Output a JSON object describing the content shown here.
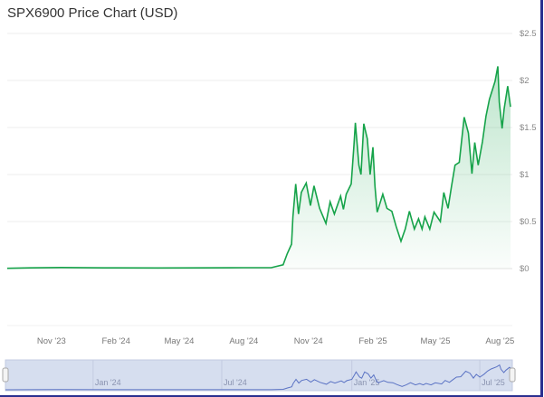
{
  "chart_data": {
    "type": "area",
    "title": "SPX6900 Price Chart (USD)",
    "xlabel": "",
    "ylabel": "",
    "ylim": [
      0,
      2.5
    ],
    "xlim": [
      "2023-08-30",
      "2025-08-16"
    ],
    "y_ticks": [
      "$0",
      "$0.5",
      "$1",
      "$1.5",
      "$2",
      "$2.5"
    ],
    "y_tick_values": [
      0,
      0.5,
      1,
      1.5,
      2,
      2.5
    ],
    "x_ticks": [
      "Nov '23",
      "Feb '24",
      "May '24",
      "Aug '24",
      "Nov '24",
      "Feb '25",
      "May '25",
      "Aug '25"
    ],
    "x_tick_dates": [
      "2023-11-01",
      "2024-02-01",
      "2024-05-01",
      "2024-08-01",
      "2024-11-01",
      "2025-02-01",
      "2025-05-01",
      "2025-08-01"
    ],
    "navigator_ticks": [
      "Jan '24",
      "Jul '24",
      "Jan '25",
      "Jul '25"
    ],
    "navigator_tick_dates": [
      "2024-01-01",
      "2024-07-01",
      "2025-01-01",
      "2025-07-01"
    ],
    "grid": true,
    "y_axis_side": "right",
    "line_color": "#16a34a",
    "navigator_color": "#5b73c4",
    "series": [
      {
        "x": [
          "2023-08-30",
          "2023-10-01",
          "2023-11-15",
          "2024-01-15",
          "2024-04-01",
          "2024-06-01",
          "2024-08-01",
          "2024-09-09",
          "2024-09-26",
          "2024-10-02",
          "2024-10-08",
          "2024-10-10",
          "2024-10-14",
          "2024-10-18",
          "2024-10-22",
          "2024-10-29",
          "2024-11-04",
          "2024-11-09",
          "2024-11-17",
          "2024-11-26",
          "2024-12-02",
          "2024-12-08",
          "2024-12-17",
          "2024-12-21",
          "2024-12-25",
          "2025-01-01",
          "2025-01-05",
          "2025-01-07",
          "2025-01-12",
          "2025-01-15",
          "2025-01-19",
          "2025-01-24",
          "2025-01-28",
          "2025-02-01",
          "2025-02-04",
          "2025-02-07",
          "2025-02-15",
          "2025-02-21",
          "2025-02-28",
          "2025-03-06",
          "2025-03-13",
          "2025-03-19",
          "2025-03-25",
          "2025-04-01",
          "2025-04-07",
          "2025-04-12",
          "2025-04-16",
          "2025-04-23",
          "2025-04-29",
          "2025-05-08",
          "2025-05-13",
          "2025-05-19",
          "2025-05-24",
          "2025-05-29",
          "2025-06-04",
          "2025-06-11",
          "2025-06-17",
          "2025-06-22",
          "2025-06-26",
          "2025-07-01",
          "2025-07-07",
          "2025-07-12",
          "2025-07-17",
          "2025-07-25",
          "2025-07-29",
          "2025-07-31",
          "2025-08-04",
          "2025-08-07",
          "2025-08-12",
          "2025-08-16"
        ],
        "y": [
          0.003,
          0.008,
          0.012,
          0.008,
          0.007,
          0.008,
          0.01,
          0.01,
          0.04,
          0.16,
          0.26,
          0.55,
          0.9,
          0.58,
          0.81,
          0.91,
          0.67,
          0.88,
          0.64,
          0.48,
          0.71,
          0.58,
          0.77,
          0.63,
          0.79,
          0.9,
          1.32,
          1.55,
          1.1,
          1.0,
          1.54,
          1.38,
          1.0,
          1.29,
          0.87,
          0.6,
          0.79,
          0.64,
          0.61,
          0.45,
          0.29,
          0.42,
          0.61,
          0.42,
          0.53,
          0.42,
          0.55,
          0.42,
          0.6,
          0.5,
          0.81,
          0.64,
          0.88,
          1.1,
          1.13,
          1.61,
          1.44,
          1.01,
          1.34,
          1.1,
          1.35,
          1.62,
          1.8,
          1.99,
          2.15,
          1.77,
          1.49,
          1.7,
          1.94,
          1.72
        ]
      }
    ]
  }
}
